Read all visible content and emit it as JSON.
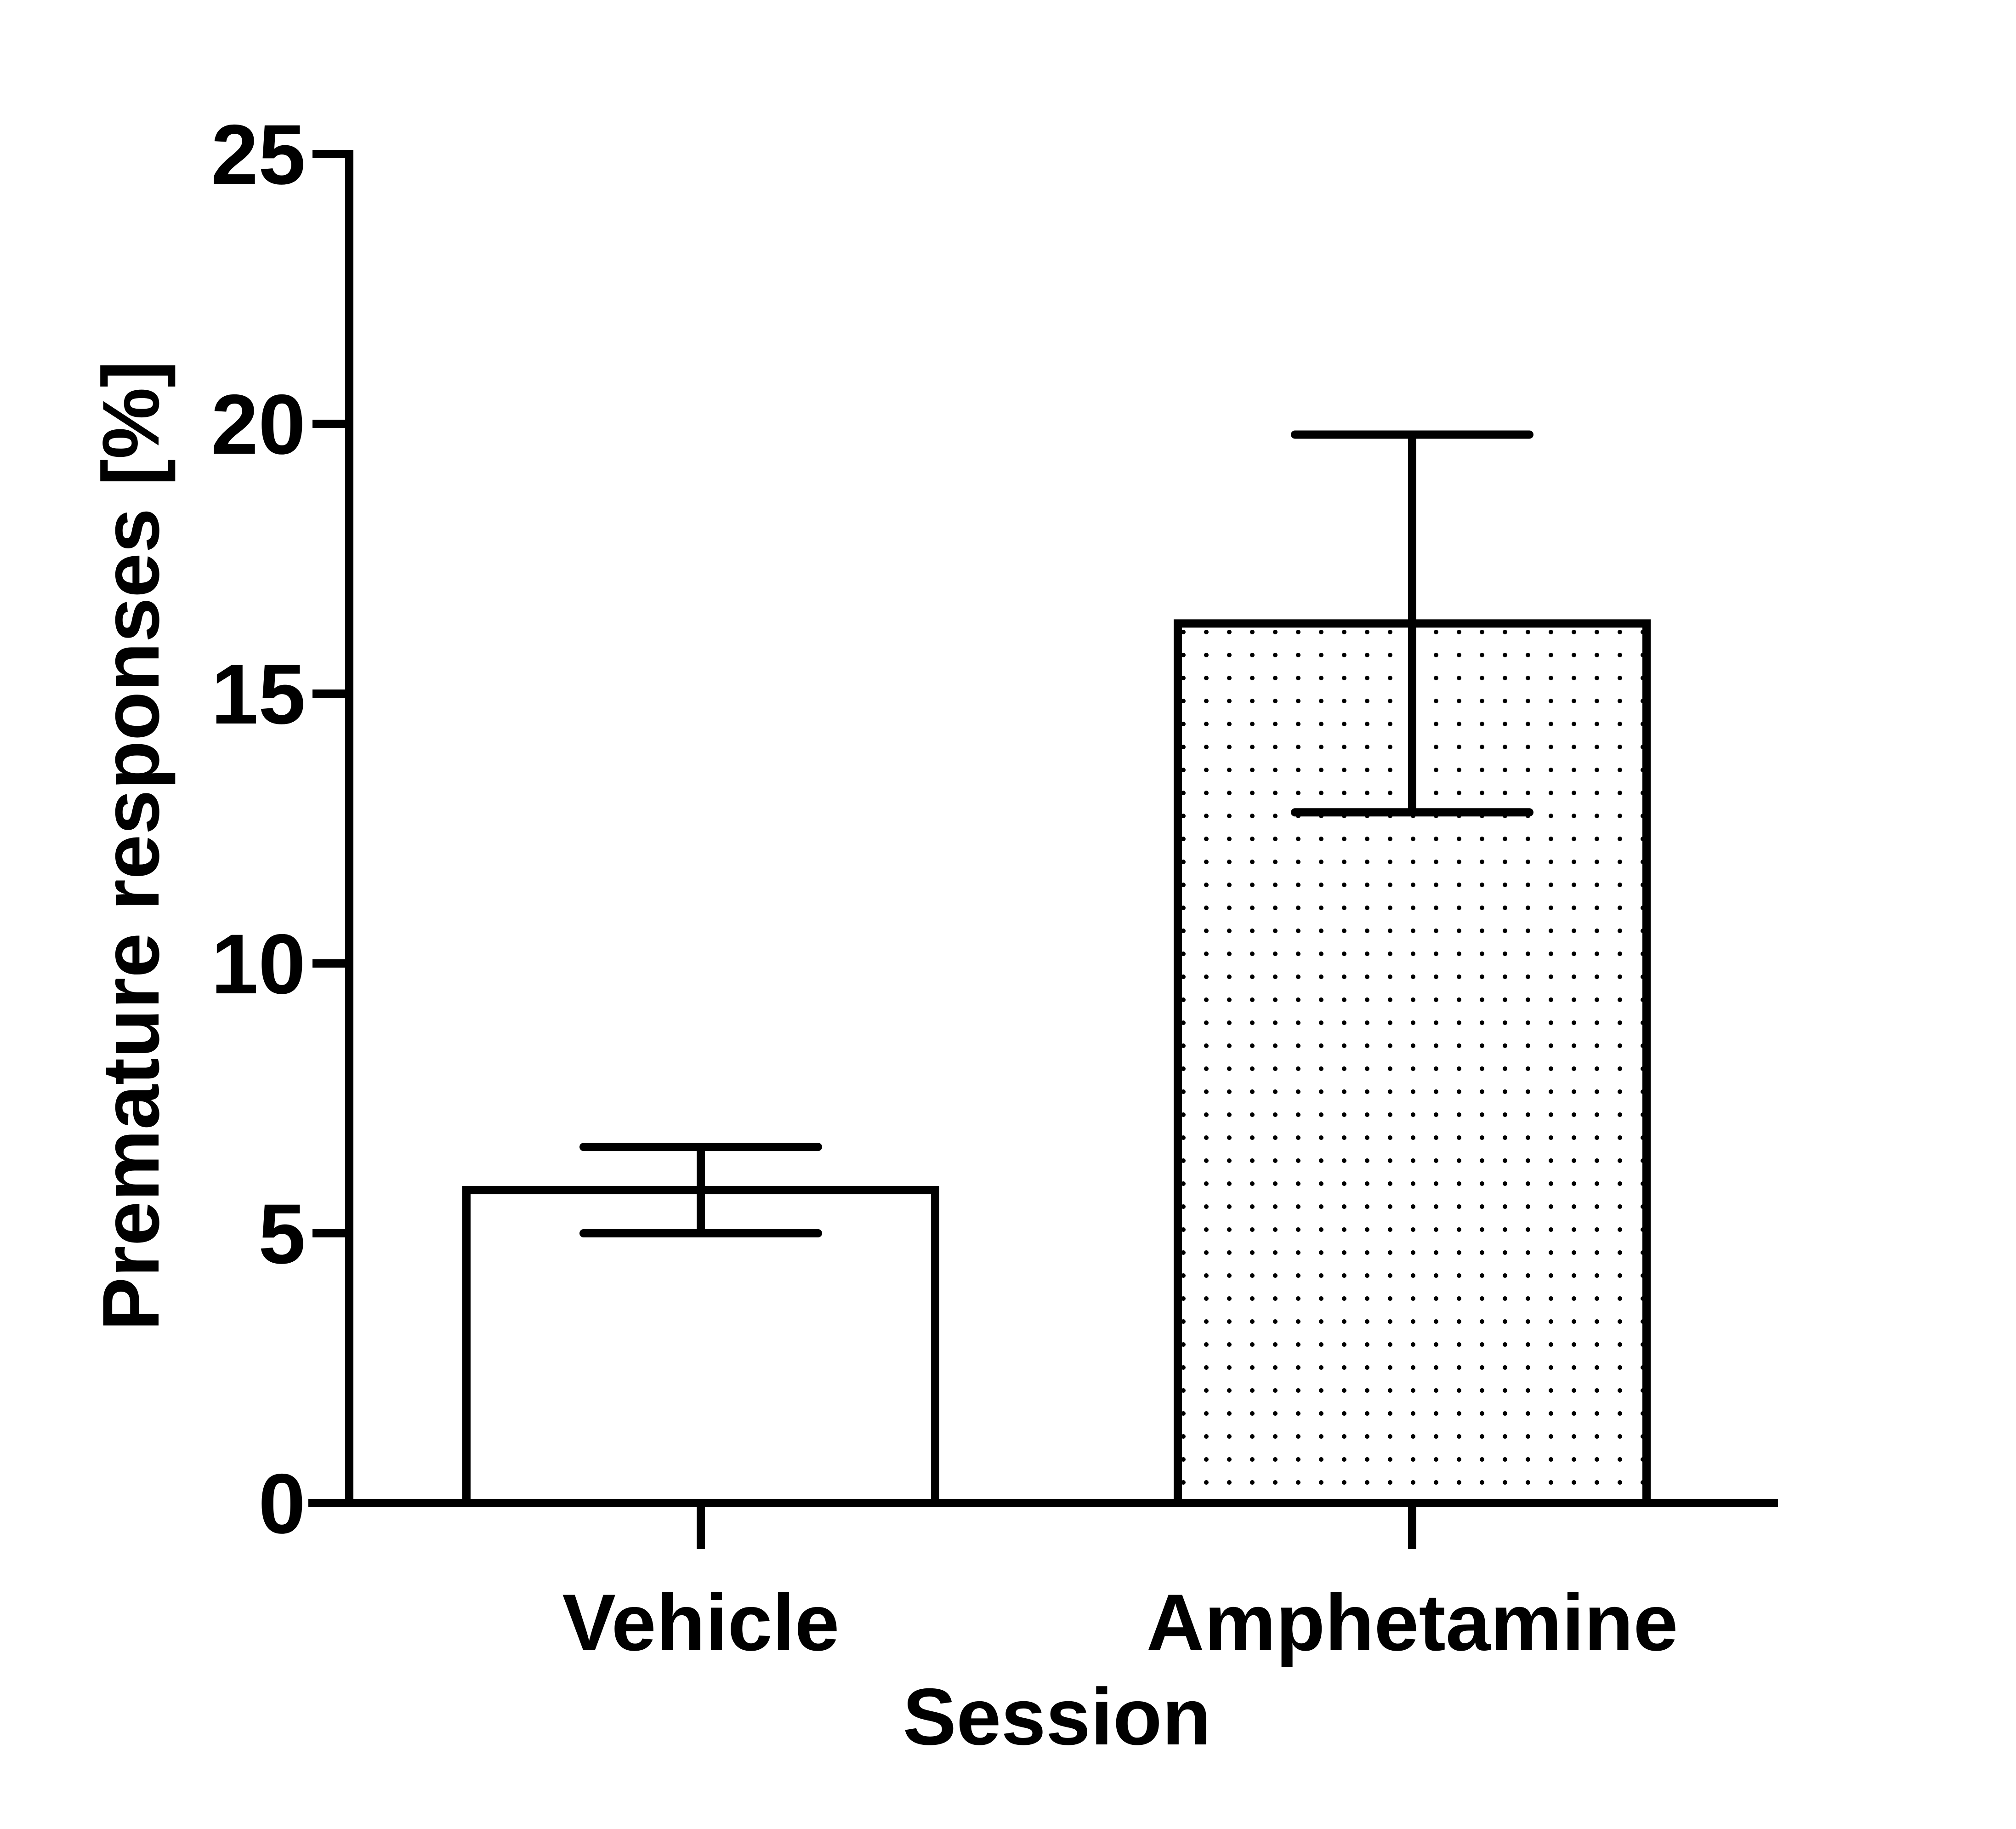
{
  "chart_data": {
    "type": "bar",
    "categories": [
      "Vehicle",
      "Amphetamine"
    ],
    "values": [
      5.8,
      16.3
    ],
    "errors": [
      0.8,
      3.5
    ],
    "xlabel": "Session",
    "ylabel": "Premature responses [%]",
    "ylim": [
      0,
      25
    ],
    "yticks": [
      "0",
      "5",
      "10",
      "15",
      "20",
      "25"
    ],
    "bar_fills": [
      "white",
      "dotted"
    ],
    "grid": false,
    "legend": "none"
  }
}
